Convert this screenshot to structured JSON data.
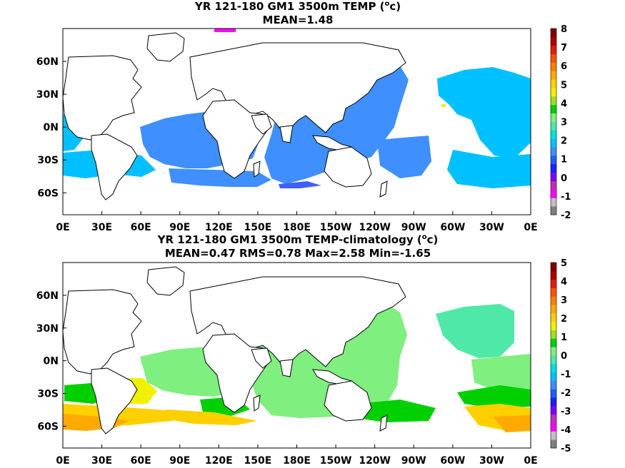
{
  "chart_data": [
    {
      "type": "heatmap",
      "title_main": "YR 121-180 GM1 3500m TEMP (",
      "title_sup": "o",
      "title_unit": "c)",
      "subtitle": "MEAN=1.48",
      "x_tick_labels": [
        "0E",
        "30E",
        "60E",
        "90E",
        "120E",
        "150E",
        "180E",
        "150W",
        "120W",
        "90W",
        "60W",
        "30W",
        "0E"
      ],
      "y_tick_labels": [
        "60N",
        "30N",
        "0N",
        "30S",
        "60S"
      ],
      "y_tick_values": [
        60,
        30,
        0,
        -30,
        -60
      ],
      "xlim": [
        0,
        360
      ],
      "ylim": [
        -80,
        90
      ],
      "colorbar": {
        "labels": [
          "-2",
          "-1",
          "0",
          "1",
          "2",
          "3",
          "4",
          "5",
          "6",
          "7",
          "8"
        ],
        "min": -2,
        "max": 8,
        "colors": [
          "#7f7f7f",
          "#c0c0c0",
          "#ff00ff",
          "#bf2fbf",
          "#7f00ff",
          "#1f1fff",
          "#1f5fff",
          "#3f8fff",
          "#00c0ff",
          "#00e0e0",
          "#4fe8a8",
          "#7fef7f",
          "#00d000",
          "#a0e020",
          "#f0f000",
          "#ffd000",
          "#ffaa00",
          "#ff8000",
          "#ff5000",
          "#e02000",
          "#b00000",
          "#800000"
        ]
      },
      "dominant_fields": [
        {
          "region": "Pacific",
          "value": "1 to 2",
          "color": "#3f8fff"
        },
        {
          "region": "Indian",
          "value": "1 to 2",
          "color": "#3f8fff"
        },
        {
          "region": "Atlantic",
          "value": "2 to 2.5",
          "color": "#00c0ff"
        },
        {
          "region": "Southern Ocean",
          "value": "1.5 to 2.5",
          "color": "#00c0ff"
        }
      ]
    },
    {
      "type": "heatmap",
      "title_main": "YR 121-180 GM1 3500m TEMP-climatology (",
      "title_sup": "o",
      "title_unit": "c)",
      "subtitle": "MEAN=0.47   RMS=0.78   Max=2.58   Min=-1.65",
      "x_tick_labels": [
        "0E",
        "30E",
        "60E",
        "90E",
        "120E",
        "150E",
        "180E",
        "150W",
        "120W",
        "90W",
        "60W",
        "30W",
        "0E"
      ],
      "y_tick_labels": [
        "60N",
        "30N",
        "0N",
        "30S",
        "60S"
      ],
      "y_tick_values": [
        60,
        30,
        0,
        -30,
        -60
      ],
      "xlim": [
        0,
        360
      ],
      "ylim": [
        -80,
        90
      ],
      "colorbar": {
        "labels": [
          "-5",
          "-4",
          "-3",
          "-2",
          "-1",
          "0",
          "1",
          "2",
          "3",
          "4",
          "5"
        ],
        "min": -5,
        "max": 5,
        "colors": [
          "#7f7f7f",
          "#c0c0c0",
          "#ff00ff",
          "#bf2fbf",
          "#7f00ff",
          "#1f1fff",
          "#1f5fff",
          "#3f8fff",
          "#00c0ff",
          "#00e0e0",
          "#4fe8a8",
          "#7fef7f",
          "#00d000",
          "#a0e020",
          "#f0f000",
          "#ffd000",
          "#ffaa00",
          "#ff8000",
          "#ff5000",
          "#e02000",
          "#b00000",
          "#800000"
        ]
      },
      "dominant_fields": [
        {
          "region": "Pacific",
          "value": "0.5 to 1",
          "color": "#7fef7f"
        },
        {
          "region": "North Atlantic",
          "value": "0 to 0.5",
          "color": "#4fe8a8"
        },
        {
          "region": "Southern Ocean",
          "value": "1 to 2.5",
          "color": "#ffd000"
        }
      ]
    }
  ]
}
